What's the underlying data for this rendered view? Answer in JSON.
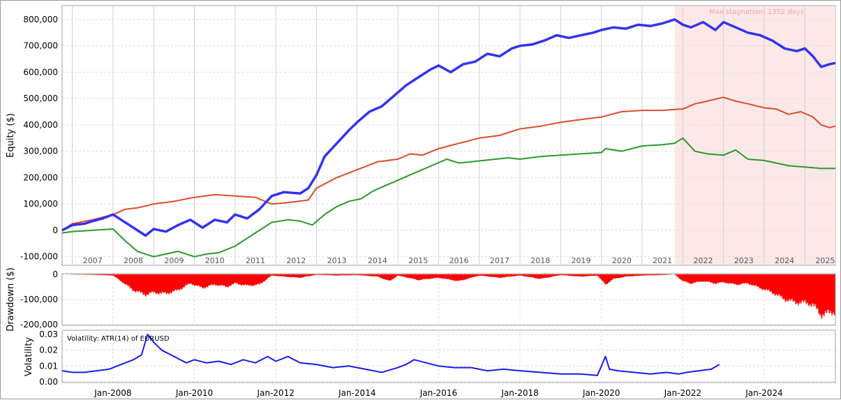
{
  "colors": {
    "equity_primary": "#3333ee",
    "equity_secondary": "#e04a2a",
    "equity_tertiary": "#2a9a2a",
    "drawdown": "#ff0000",
    "volatility": "#1a1aee",
    "stagnation_fill": "#fde8e8"
  },
  "chart_data": [
    {
      "type": "line",
      "ylabel": "Equity ($)",
      "ylim": [
        -130000,
        850000
      ],
      "xlim": [
        2006.75,
        2025.75
      ],
      "yticks": [
        "800,000",
        "700,000",
        "600,000",
        "500,000",
        "400,000",
        "300,000",
        "200,000",
        "100,000",
        "0",
        "-100,000"
      ],
      "ytick_values": [
        800000,
        700000,
        600000,
        500000,
        400000,
        300000,
        200000,
        100000,
        0,
        -100000
      ],
      "year_labels": [
        "2007",
        "2008",
        "2009",
        "2010",
        "2011",
        "2012",
        "2013",
        "2014",
        "2015",
        "2016",
        "2017",
        "2018",
        "2019",
        "2020",
        "2021",
        "2022",
        "2023",
        "2024",
        "2025"
      ],
      "grid": true,
      "annotation": {
        "text": "Max stagnation: 1352 days",
        "start": 2021.8,
        "end": 2025.75
      },
      "series": [
        {
          "x": [
            2006.75,
            2007.0,
            2007.3,
            2007.5,
            2007.75,
            2008.0,
            2008.2,
            2008.5,
            2008.8,
            2009.0,
            2009.3,
            2009.6,
            2009.9,
            2010.2,
            2010.5,
            2010.8,
            2011.0,
            2011.3,
            2011.6,
            2011.9,
            2012.2,
            2012.6,
            2012.8,
            2013.0,
            2013.2,
            2013.5,
            2013.8,
            2014.0,
            2014.3,
            2014.6,
            2014.9,
            2015.2,
            2015.5,
            2015.8,
            2016.0,
            2016.3,
            2016.6,
            2016.9,
            2017.2,
            2017.5,
            2017.8,
            2018.0,
            2018.3,
            2018.6,
            2018.9,
            2019.2,
            2019.5,
            2019.8,
            2020.0,
            2020.3,
            2020.6,
            2020.9,
            2021.2,
            2021.5,
            2021.8,
            2022.0,
            2022.2,
            2022.5,
            2022.8,
            2023.0,
            2023.3,
            2023.6,
            2023.9,
            2024.2,
            2024.5,
            2024.8,
            2025.0,
            2025.2,
            2025.4,
            2025.6,
            2025.75
          ],
          "y": [
            0,
            20000,
            25000,
            35000,
            45000,
            60000,
            40000,
            10000,
            -20000,
            5000,
            -5000,
            20000,
            40000,
            10000,
            40000,
            30000,
            60000,
            45000,
            80000,
            130000,
            145000,
            140000,
            160000,
            210000,
            280000,
            330000,
            380000,
            410000,
            450000,
            470000,
            510000,
            550000,
            580000,
            610000,
            625000,
            600000,
            630000,
            640000,
            670000,
            660000,
            690000,
            700000,
            705000,
            720000,
            740000,
            730000,
            740000,
            750000,
            760000,
            770000,
            765000,
            780000,
            775000,
            785000,
            800000,
            780000,
            770000,
            790000,
            760000,
            790000,
            770000,
            750000,
            740000,
            720000,
            690000,
            680000,
            690000,
            660000,
            620000,
            630000,
            635000
          ]
        },
        {
          "x": [
            2006.75,
            2007.0,
            2007.5,
            2008.0,
            2008.3,
            2008.6,
            2009.0,
            2009.5,
            2010.0,
            2010.5,
            2011.0,
            2011.5,
            2011.9,
            2012.3,
            2012.8,
            2013.0,
            2013.5,
            2014.0,
            2014.5,
            2015.0,
            2015.3,
            2015.6,
            2016.0,
            2016.5,
            2017.0,
            2017.5,
            2018.0,
            2018.5,
            2019.0,
            2019.5,
            2020.0,
            2020.5,
            2021.0,
            2021.5,
            2021.9,
            2022.0,
            2022.3,
            2022.6,
            2023.0,
            2023.3,
            2023.6,
            2024.0,
            2024.3,
            2024.6,
            2024.9,
            2025.2,
            2025.4,
            2025.6,
            2025.75
          ],
          "y": [
            0,
            25000,
            40000,
            60000,
            80000,
            85000,
            100000,
            110000,
            125000,
            135000,
            130000,
            125000,
            100000,
            105000,
            115000,
            160000,
            200000,
            230000,
            260000,
            270000,
            290000,
            285000,
            310000,
            330000,
            350000,
            360000,
            385000,
            395000,
            410000,
            420000,
            430000,
            450000,
            455000,
            455000,
            460000,
            460000,
            480000,
            490000,
            505000,
            490000,
            480000,
            465000,
            460000,
            440000,
            450000,
            430000,
            400000,
            390000,
            395000
          ]
        },
        {
          "x": [
            2006.75,
            2007.0,
            2007.5,
            2008.0,
            2008.3,
            2008.6,
            2009.0,
            2009.3,
            2009.6,
            2010.0,
            2010.3,
            2010.6,
            2011.0,
            2011.3,
            2011.6,
            2011.9,
            2012.3,
            2012.6,
            2012.9,
            2013.2,
            2013.5,
            2013.8,
            2014.1,
            2014.4,
            2014.7,
            2015.0,
            2015.3,
            2015.6,
            2015.9,
            2016.2,
            2016.5,
            2016.8,
            2017.1,
            2017.4,
            2017.7,
            2018.0,
            2018.5,
            2019.0,
            2019.5,
            2020.0,
            2020.1,
            2020.5,
            2021.0,
            2021.5,
            2021.8,
            2022.0,
            2022.3,
            2022.6,
            2023.0,
            2023.3,
            2023.6,
            2024.0,
            2024.3,
            2024.6,
            2025.0,
            2025.4,
            2025.75
          ],
          "y": [
            -10000,
            -5000,
            0,
            5000,
            -40000,
            -80000,
            -100000,
            -90000,
            -80000,
            -100000,
            -90000,
            -85000,
            -60000,
            -30000,
            0,
            30000,
            40000,
            35000,
            20000,
            60000,
            90000,
            110000,
            120000,
            150000,
            170000,
            190000,
            210000,
            230000,
            250000,
            270000,
            255000,
            260000,
            265000,
            270000,
            275000,
            270000,
            280000,
            285000,
            290000,
            295000,
            310000,
            300000,
            320000,
            325000,
            330000,
            350000,
            300000,
            290000,
            285000,
            305000,
            270000,
            265000,
            255000,
            245000,
            240000,
            235000,
            235000
          ]
        }
      ]
    },
    {
      "type": "bar",
      "ylabel": "Drawdown ($)",
      "ylim": [
        -200000,
        0
      ],
      "yticks": [
        "0",
        "-100,000",
        "-200,000"
      ],
      "ytick_values": [
        0,
        -100000,
        -200000
      ],
      "x": [
        2006.75,
        2007.5,
        2008.0,
        2008.2,
        2008.5,
        2008.8,
        2009.0,
        2009.3,
        2009.6,
        2009.9,
        2010.2,
        2010.5,
        2010.8,
        2011.0,
        2011.3,
        2011.6,
        2011.9,
        2012.2,
        2012.6,
        2013.0,
        2013.5,
        2014.0,
        2014.5,
        2014.8,
        2015.0,
        2015.5,
        2016.0,
        2016.5,
        2017.0,
        2017.5,
        2018.0,
        2018.5,
        2019.0,
        2019.5,
        2019.9,
        2020.1,
        2020.3,
        2020.6,
        2021.0,
        2021.5,
        2021.8,
        2022.0,
        2022.2,
        2022.5,
        2022.8,
        2023.0,
        2023.3,
        2023.6,
        2023.9,
        2024.2,
        2024.5,
        2024.8,
        2025.0,
        2025.2,
        2025.4,
        2025.6,
        2025.75
      ],
      "y": [
        0,
        -2000,
        -5000,
        -30000,
        -70000,
        -90000,
        -80000,
        -85000,
        -70000,
        -40000,
        -60000,
        -45000,
        -55000,
        -40000,
        -50000,
        -45000,
        -5000,
        -10000,
        -15000,
        -2000,
        -5000,
        -3000,
        -10000,
        -30000,
        -5000,
        -25000,
        -15000,
        -30000,
        -5000,
        -15000,
        -5000,
        -20000,
        -3000,
        -10000,
        -5000,
        -45000,
        -20000,
        -10000,
        -5000,
        -3000,
        0,
        -30000,
        -40000,
        -30000,
        -40000,
        -35000,
        -45000,
        -40000,
        -60000,
        -80000,
        -110000,
        -125000,
        -125000,
        -135000,
        -180000,
        -170000,
        -165000
      ]
    },
    {
      "type": "line",
      "title": "Volatility: ATR(14) of EURUSD",
      "ylabel": "Volatility",
      "ylim": [
        0,
        0.03
      ],
      "yticks": [
        "0.03",
        "0.02",
        "0.01",
        "0.00"
      ],
      "ytick_values": [
        0.03,
        0.02,
        0.01,
        0
      ],
      "xticks": [
        "Jan-2008",
        "Jan-2010",
        "Jan-2012",
        "Jan-2014",
        "Jan-2016",
        "Jan-2018",
        "Jan-2020",
        "Jan-2022",
        "Jan-2024"
      ],
      "xtick_values": [
        2008,
        2010,
        2012,
        2014,
        2016,
        2018,
        2020,
        2022,
        2024
      ],
      "x": [
        2006.75,
        2007.0,
        2007.3,
        2007.6,
        2007.9,
        2008.2,
        2008.5,
        2008.7,
        2008.85,
        2009.0,
        2009.2,
        2009.5,
        2009.8,
        2010.0,
        2010.3,
        2010.6,
        2010.9,
        2011.2,
        2011.5,
        2011.8,
        2012.0,
        2012.3,
        2012.6,
        2013.0,
        2013.4,
        2013.8,
        2014.2,
        2014.6,
        2015.0,
        2015.2,
        2015.4,
        2015.7,
        2016.0,
        2016.4,
        2016.8,
        2017.2,
        2017.6,
        2018.0,
        2018.5,
        2019.0,
        2019.5,
        2019.9,
        2020.1,
        2020.2,
        2020.4,
        2020.8,
        2021.2,
        2021.6,
        2021.9,
        2022.1,
        2022.4,
        2022.7,
        2022.9
      ],
      "y": [
        0.007,
        0.006,
        0.006,
        0.007,
        0.008,
        0.011,
        0.014,
        0.017,
        0.03,
        0.025,
        0.02,
        0.016,
        0.012,
        0.014,
        0.012,
        0.013,
        0.011,
        0.014,
        0.012,
        0.016,
        0.013,
        0.016,
        0.012,
        0.011,
        0.009,
        0.01,
        0.008,
        0.006,
        0.009,
        0.011,
        0.014,
        0.012,
        0.01,
        0.009,
        0.009,
        0.007,
        0.008,
        0.007,
        0.006,
        0.005,
        0.005,
        0.004,
        0.016,
        0.008,
        0.007,
        0.006,
        0.005,
        0.006,
        0.005,
        0.006,
        0.007,
        0.008,
        0.011
      ]
    }
  ]
}
